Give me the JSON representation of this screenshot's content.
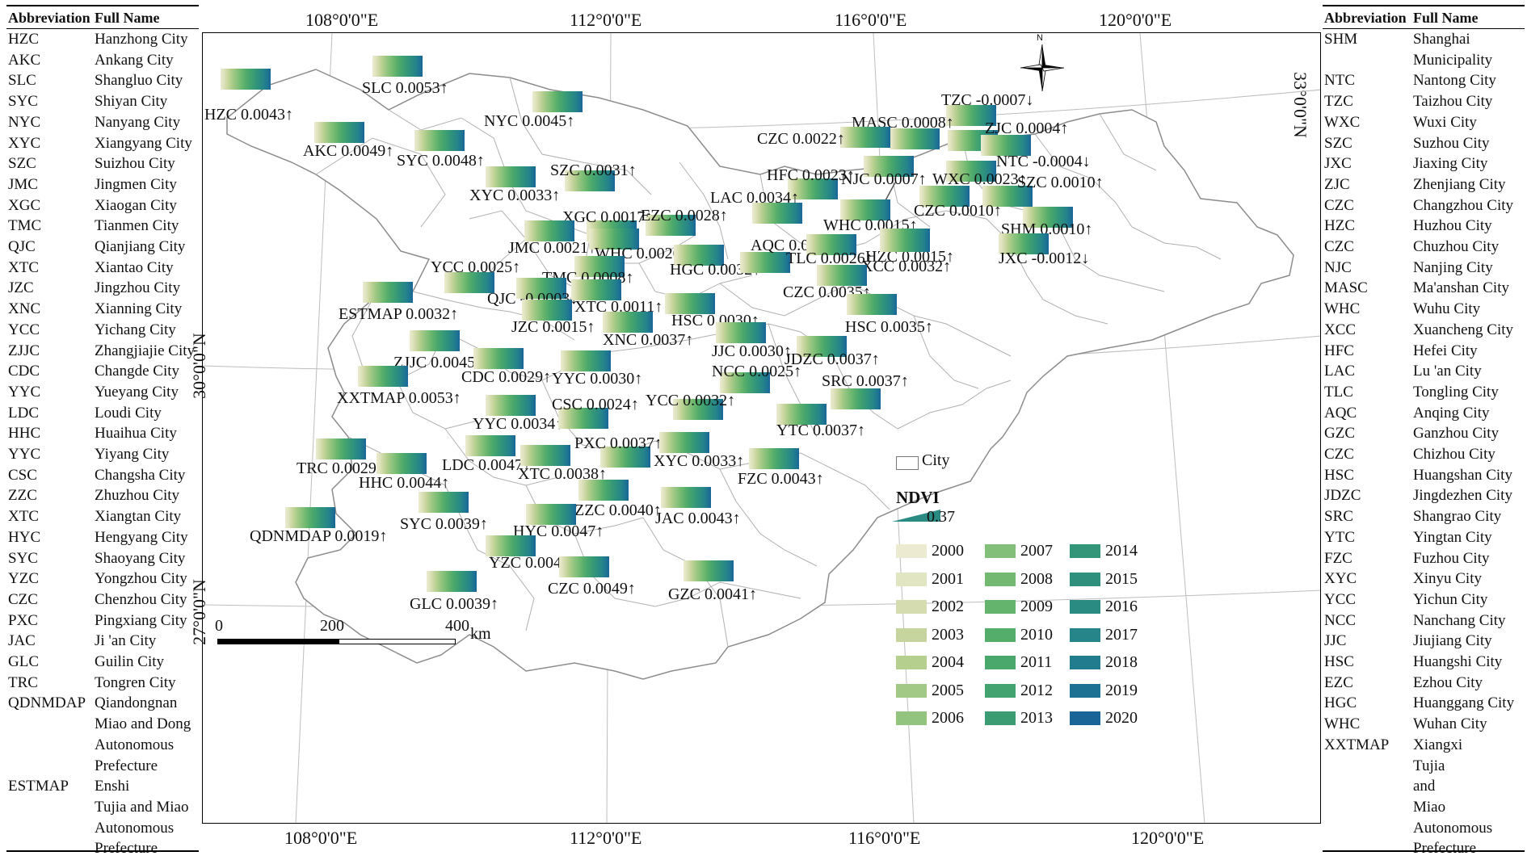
{
  "left_table": {
    "header": {
      "abbr": "Abbreviation",
      "name": "Full Name"
    },
    "rows": [
      [
        "HZC",
        "Hanzhong City"
      ],
      [
        "AKC",
        "Ankang City"
      ],
      [
        "SLC",
        "Shangluo City"
      ],
      [
        "SYC",
        "Shiyan City"
      ],
      [
        "NYC",
        "Nanyang City"
      ],
      [
        "XYC",
        "Xiangyang City"
      ],
      [
        "SZC",
        "Suizhou City"
      ],
      [
        "JMC",
        "Jingmen City"
      ],
      [
        "XGC",
        "Xiaogan City"
      ],
      [
        "TMC",
        "Tianmen City"
      ],
      [
        "QJC",
        "Qianjiang City"
      ],
      [
        "XTC",
        "Xiantao City"
      ],
      [
        "JZC",
        "Jingzhou City"
      ],
      [
        "XNC",
        "Xianning City"
      ],
      [
        "YCC",
        "Yichang City"
      ],
      [
        "ZJJC",
        "Zhangjiajie City"
      ],
      [
        "CDC",
        "Changde City"
      ],
      [
        "YYC",
        "Yueyang City"
      ],
      [
        "LDC",
        "Loudi City"
      ],
      [
        "HHC",
        "Huaihua City"
      ],
      [
        "YYC",
        "Yiyang City"
      ],
      [
        "CSC",
        "Changsha City"
      ],
      [
        "ZZC",
        "Zhuzhou City"
      ],
      [
        "XTC",
        "Xiangtan City"
      ],
      [
        "HYC",
        "Hengyang City"
      ],
      [
        "SYC",
        "Shaoyang City"
      ],
      [
        "YZC",
        "Yongzhou City"
      ],
      [
        "CZC",
        "Chenzhou City"
      ],
      [
        "PXC",
        "Pingxiang City"
      ],
      [
        "JAC",
        "Ji 'an City"
      ],
      [
        "GLC",
        "Guilin City"
      ],
      [
        "TRC",
        "Tongren City"
      ],
      [
        "QDNMDAP",
        "Qiandongnan"
      ],
      [
        "",
        "Miao and Dong"
      ],
      [
        "",
        "Autonomous"
      ],
      [
        "",
        "Prefecture"
      ],
      [
        "ESTMAP",
        "Enshi"
      ],
      [
        "",
        "Tujia and Miao"
      ],
      [
        "",
        "Autonomous"
      ],
      [
        "",
        "Prefecture"
      ]
    ]
  },
  "right_table": {
    "header": {
      "abbr": "Abbreviation",
      "name": "Full Name"
    },
    "rows": [
      [
        "SHM",
        "Shanghai"
      ],
      [
        "",
        "Municipality"
      ],
      [
        "NTC",
        "Nantong City"
      ],
      [
        "TZC",
        "Taizhou City"
      ],
      [
        "WXC",
        "Wuxi City"
      ],
      [
        "SZC",
        "Suzhou City"
      ],
      [
        "JXC",
        "Jiaxing City"
      ],
      [
        "ZJC",
        "Zhenjiang City"
      ],
      [
        "CZC",
        "Changzhou City"
      ],
      [
        "HZC",
        "Huzhou City"
      ],
      [
        "CZC",
        "Chuzhou City"
      ],
      [
        "NJC",
        "Nanjing City"
      ],
      [
        "MASC",
        "Ma'anshan City"
      ],
      [
        "WHC",
        "Wuhu City"
      ],
      [
        "XCC",
        "Xuancheng City"
      ],
      [
        "HFC",
        "Hefei City"
      ],
      [
        "LAC",
        "Lu 'an City"
      ],
      [
        "TLC",
        "Tongling City"
      ],
      [
        "AQC",
        "Anqing City"
      ],
      [
        "GZC",
        "Ganzhou City"
      ],
      [
        "CZC",
        "Chizhou City"
      ],
      [
        "HSC",
        "Huangshan City"
      ],
      [
        "JDZC",
        "Jingdezhen City"
      ],
      [
        "SRC",
        "Shangrao City"
      ],
      [
        "YTC",
        "Yingtan City"
      ],
      [
        "FZC",
        "Fuzhou City"
      ],
      [
        "XYC",
        "Xinyu City"
      ],
      [
        "YCC",
        "Yichun City"
      ],
      [
        "NCC",
        "Nanchang City"
      ],
      [
        "JJC",
        "Jiujiang City"
      ],
      [
        "HSC",
        "Huangshi City"
      ],
      [
        "EZC",
        "Ezhou City"
      ],
      [
        "HGC",
        "Huanggang City"
      ],
      [
        "WHC",
        "Wuhan City"
      ],
      [
        "XXTMAP",
        "Xiangxi"
      ],
      [
        "",
        "Tujia"
      ],
      [
        "",
        "and"
      ],
      [
        "",
        "Miao"
      ],
      [
        "",
        "Autonomous"
      ],
      [
        "",
        "Prefecture"
      ]
    ]
  },
  "coords": {
    "top": [
      "108°0'0\"E",
      "112°0'0\"E",
      "116°0'0\"E",
      "120°0'0\"E"
    ],
    "bottom": [
      "108°0'0\"E",
      "112°0'0\"E",
      "116°0'0\"E",
      "120°0'0\"E"
    ],
    "left": [
      "30°0'0\"N",
      "27°0'0\"N"
    ],
    "right": [
      "33°0'0\"N"
    ]
  },
  "north_arrow": {
    "label": "N"
  },
  "scale": {
    "ticks": [
      "0",
      "200",
      "400"
    ],
    "unit": "km"
  },
  "legend": {
    "city_label": "City",
    "ndvi_title": "NDVI",
    "ndvi_value": "0.37",
    "years": [
      "2000",
      "2001",
      "2002",
      "2003",
      "2004",
      "2005",
      "2006",
      "2007",
      "2008",
      "2009",
      "2010",
      "2011",
      "2012",
      "2013",
      "2014",
      "2015",
      "2016",
      "2017",
      "2018",
      "2019",
      "2020"
    ],
    "colors": [
      "#ecebd2",
      "#e2e5c2",
      "#d5ddb0",
      "#c6d59e",
      "#b5cf8e",
      "#a3c987",
      "#92c47f",
      "#82bf78",
      "#73b971",
      "#64b46d",
      "#55ad6b",
      "#4aa86d",
      "#42a270",
      "#3b9c74",
      "#349678",
      "#2f917d",
      "#2a8b83",
      "#268589",
      "#217d8e",
      "#1d7293",
      "#1a6598"
    ]
  },
  "cities": [
    {
      "label": "HZC 0.0043",
      "arrow": "up"
    },
    {
      "label": "SLC 0.0053",
      "arrow": "up"
    },
    {
      "label": "NYC 0.0045",
      "arrow": "up"
    },
    {
      "label": "AKC 0.0049",
      "arrow": "up"
    },
    {
      "label": "SYC 0.0048",
      "arrow": "up"
    },
    {
      "label": "SZC 0.0031",
      "arrow": "up"
    },
    {
      "label": "XYC 0.0033",
      "arrow": "up"
    },
    {
      "label": "XGC 0.0017",
      "arrow": "up"
    },
    {
      "label": "EZC 0.0028",
      "arrow": "up"
    },
    {
      "label": "JMC 0.0021",
      "arrow": "up"
    },
    {
      "label": "WHC 0.0026",
      "arrow": "up"
    },
    {
      "label": "YCC 0.0025",
      "arrow": "up"
    },
    {
      "label": "TMC 0.0008",
      "arrow": "up"
    },
    {
      "label": "HGC 0.0032",
      "arrow": "up"
    },
    {
      "label": "QJC -0.0003",
      "arrow": "down"
    },
    {
      "label": "XTC 0.0011",
      "arrow": "up"
    },
    {
      "label": "ESTMAP 0.0032",
      "arrow": "up"
    },
    {
      "label": "JZC 0.0015",
      "arrow": "up"
    },
    {
      "label": "HSC 0.0030",
      "arrow": "up"
    },
    {
      "label": "XNC 0.0037",
      "arrow": "up"
    },
    {
      "label": "JJC 0.0030",
      "arrow": "up"
    },
    {
      "label": "ZJJC 0.0045",
      "arrow": "up"
    },
    {
      "label": "CDC 0.0029",
      "arrow": "up"
    },
    {
      "label": "YYC 0.0030",
      "arrow": "up"
    },
    {
      "label": "XXTMAP 0.0053",
      "arrow": "up"
    },
    {
      "label": "YYC 0.0034",
      "arrow": "up"
    },
    {
      "label": "CSC 0.0024",
      "arrow": "up"
    },
    {
      "label": "YCC 0.0032",
      "arrow": "up"
    },
    {
      "label": "NCC 0.0025",
      "arrow": "up"
    },
    {
      "label": "PXC 0.0037",
      "arrow": "up"
    },
    {
      "label": "XYC 0.0033",
      "arrow": "up"
    },
    {
      "label": "TRC 0.0029",
      "arrow": "up"
    },
    {
      "label": "LDC 0.0047",
      "arrow": "up"
    },
    {
      "label": "XTC 0.0038",
      "arrow": "up"
    },
    {
      "label": "HHC 0.0044",
      "arrow": "up"
    },
    {
      "label": "FZC 0.0043",
      "arrow": "up"
    },
    {
      "label": "ZZC 0.0040",
      "arrow": "up"
    },
    {
      "label": "JAC 0.0043",
      "arrow": "up"
    },
    {
      "label": "QDNMDAP 0.0019",
      "arrow": "up"
    },
    {
      "label": "SYC 0.0039",
      "arrow": "up"
    },
    {
      "label": "HYC 0.0047",
      "arrow": "up"
    },
    {
      "label": "YZC 0.0043",
      "arrow": "up"
    },
    {
      "label": "CZC 0.0049",
      "arrow": "up"
    },
    {
      "label": "GZC 0.0041",
      "arrow": "up"
    },
    {
      "label": "GLC 0.0039",
      "arrow": "up"
    },
    {
      "label": "TZC -0.0007",
      "arrow": "down"
    },
    {
      "label": "MASC 0.0008",
      "arrow": "up"
    },
    {
      "label": "ZJC 0.0004",
      "arrow": "up"
    },
    {
      "label": "CZC 0.0022",
      "arrow": "up"
    },
    {
      "label": "NTC -0.0004",
      "arrow": "down"
    },
    {
      "label": "HFC 0.0023",
      "arrow": "up"
    },
    {
      "label": "NJC 0.0007",
      "arrow": "up"
    },
    {
      "label": "WXC 0.0023",
      "arrow": "up"
    },
    {
      "label": "SZC 0.0010",
      "arrow": "up"
    },
    {
      "label": "LAC 0.0034",
      "arrow": "up"
    },
    {
      "label": "CZC 0.0010",
      "arrow": "up"
    },
    {
      "label": "WHC 0.0015",
      "arrow": "up"
    },
    {
      "label": "SHM 0.0010",
      "arrow": "up"
    },
    {
      "label": "AQC 0.0020",
      "arrow": "up"
    },
    {
      "label": "HZC 0.0015",
      "arrow": "up"
    },
    {
      "label": "TLC 0.0026",
      "arrow": "up"
    },
    {
      "label": "XCC 0.0032",
      "arrow": "up"
    },
    {
      "label": "JXC -0.0012",
      "arrow": "down"
    },
    {
      "label": "CZC 0.0035",
      "arrow": "up"
    },
    {
      "label": "HSC 0.0035",
      "arrow": "up"
    },
    {
      "label": "JDZC 0.0037",
      "arrow": "up"
    },
    {
      "label": "SRC 0.0037",
      "arrow": "up"
    },
    {
      "label": "YTC 0.0037",
      "arrow": "up"
    }
  ]
}
